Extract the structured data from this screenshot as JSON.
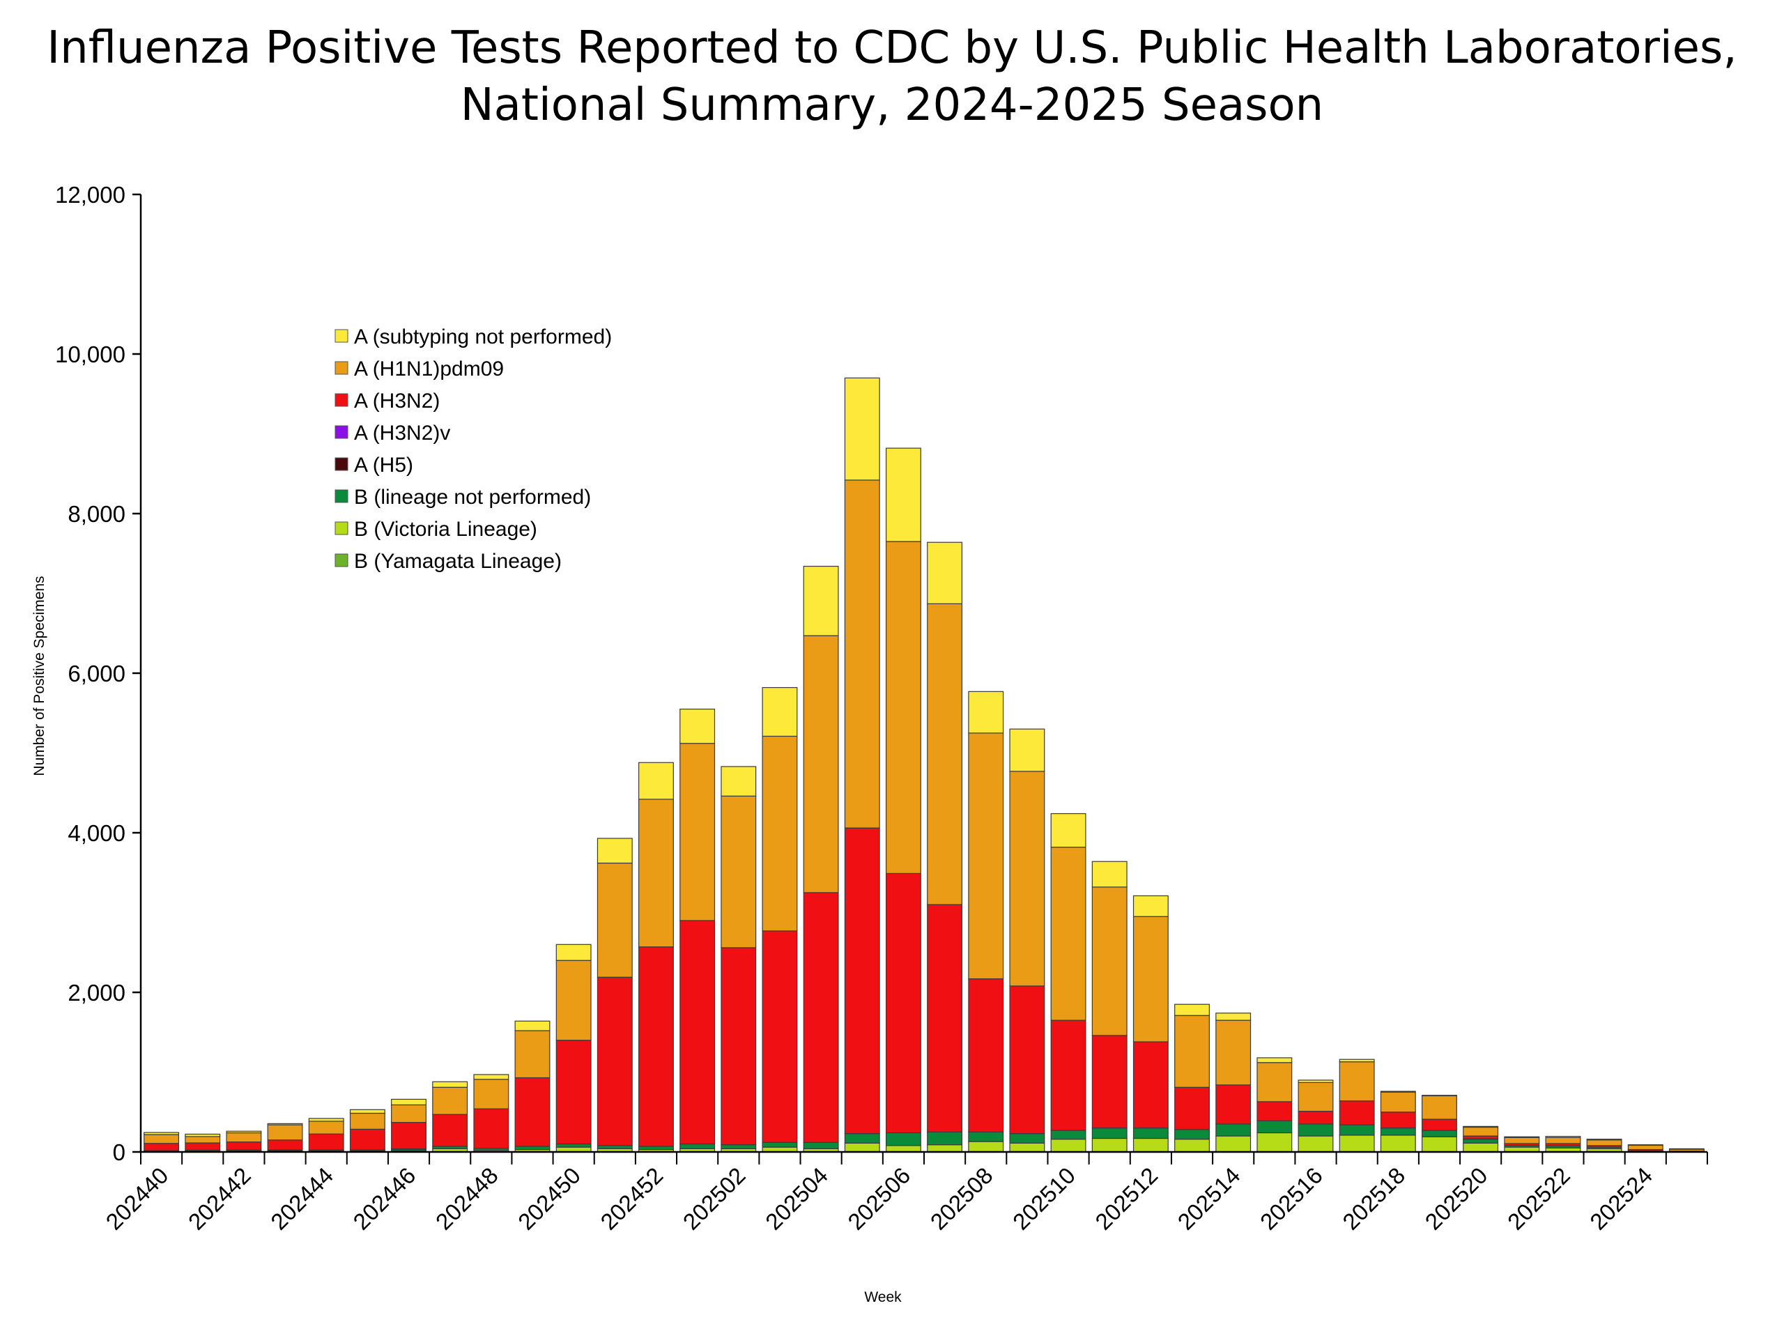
{
  "chart_data": {
    "type": "bar",
    "stacked": true,
    "title_lines": [
      "Influenza Positive Tests Reported to CDC by U.S. Public Health Laboratories,",
      "National Summary, 2024-2025 Season"
    ],
    "xlabel": "Week",
    "ylabel": "Number of Positive Specimens",
    "ylim": [
      0,
      12000
    ],
    "yticks": [
      0,
      2000,
      4000,
      6000,
      8000,
      10000,
      12000
    ],
    "ytick_labels": [
      "0",
      "2,000",
      "4,000",
      "6,000",
      "8,000",
      "10,000",
      "12,000"
    ],
    "grid": false,
    "legend_position": "upper-left inside",
    "categories": [
      "202440",
      "202441",
      "202442",
      "202443",
      "202444",
      "202445",
      "202446",
      "202447",
      "202448",
      "202449",
      "202450",
      "202451",
      "202452",
      "202501",
      "202502",
      "202503",
      "202504",
      "202505",
      "202506",
      "202507",
      "202508",
      "202509",
      "202510",
      "202511",
      "202512",
      "202513",
      "202514",
      "202515",
      "202516",
      "202517",
      "202518",
      "202519",
      "202520",
      "202521",
      "202522",
      "202523",
      "202524",
      "202525"
    ],
    "xtick_labels": [
      "202440",
      "202442",
      "202444",
      "202446",
      "202448",
      "202450",
      "202452",
      "202502",
      "202504",
      "202506",
      "202508",
      "202510",
      "202512",
      "202514",
      "202516",
      "202518",
      "202520",
      "202522",
      "202524"
    ],
    "series": [
      {
        "name": "B (Yamagata Lineage)",
        "color": "#6DB32A",
        "values": [
          0,
          0,
          0,
          0,
          0,
          0,
          0,
          0,
          0,
          0,
          0,
          0,
          0,
          0,
          0,
          0,
          0,
          0,
          0,
          0,
          0,
          0,
          0,
          0,
          0,
          0,
          0,
          0,
          0,
          0,
          0,
          0,
          0,
          0,
          0,
          0,
          0,
          0
        ]
      },
      {
        "name": "B (Victoria Lineage)",
        "color": "#B5DC16",
        "values": [
          10,
          8,
          10,
          5,
          10,
          10,
          15,
          40,
          20,
          30,
          60,
          40,
          30,
          40,
          40,
          60,
          40,
          110,
          80,
          90,
          130,
          110,
          160,
          170,
          170,
          160,
          200,
          240,
          200,
          210,
          210,
          190,
          110,
          60,
          50,
          40,
          5,
          5
        ]
      },
      {
        "name": "B (lineage not performed)",
        "color": "#0A8A3A",
        "values": [
          5,
          5,
          5,
          5,
          10,
          10,
          20,
          30,
          25,
          40,
          40,
          40,
          40,
          60,
          50,
          60,
          80,
          120,
          160,
          160,
          120,
          120,
          110,
          130,
          130,
          120,
          150,
          150,
          150,
          130,
          90,
          80,
          50,
          20,
          25,
          20,
          5,
          0
        ]
      },
      {
        "name": "A (H5)",
        "color": "#4A0A0A",
        "values": [
          2,
          10,
          10,
          15,
          5,
          5,
          3,
          0,
          0,
          0,
          0,
          0,
          0,
          0,
          0,
          0,
          0,
          0,
          0,
          0,
          0,
          0,
          0,
          0,
          0,
          0,
          0,
          0,
          0,
          0,
          0,
          0,
          5,
          0,
          0,
          0,
          5,
          0
        ]
      },
      {
        "name": "A (H3N2)v",
        "color": "#8B10E8",
        "values": [
          0,
          0,
          0,
          0,
          0,
          0,
          0,
          0,
          0,
          0,
          0,
          0,
          0,
          0,
          0,
          0,
          0,
          0,
          0,
          0,
          0,
          0,
          0,
          0,
          0,
          0,
          0,
          0,
          0,
          0,
          0,
          0,
          0,
          0,
          0,
          0,
          0,
          0
        ]
      },
      {
        "name": "A (H3N2)",
        "color": "#F00F13",
        "values": [
          90,
          90,
          100,
          125,
          200,
          260,
          332,
          400,
          495,
          860,
          1300,
          2110,
          2500,
          2800,
          2470,
          2650,
          3130,
          3830,
          3250,
          2850,
          1920,
          1850,
          1380,
          1160,
          1080,
          530,
          490,
          240,
          160,
          300,
          200,
          140,
          35,
          25,
          30,
          20,
          15,
          5
        ]
      },
      {
        "name": "A (H1N1)pdm09",
        "color": "#EA9C16",
        "values": [
          110,
          80,
          115,
          190,
          160,
          200,
          220,
          340,
          370,
          590,
          1000,
          1430,
          1850,
          2220,
          1900,
          2440,
          3220,
          4360,
          4160,
          3770,
          3080,
          2690,
          2170,
          1860,
          1570,
          900,
          810,
          490,
          360,
          490,
          250,
          295,
          110,
          75,
          75,
          70,
          55,
          25
        ]
      },
      {
        "name": "A (subtyping not performed)",
        "color": "#FCE93A",
        "values": [
          27,
          30,
          20,
          15,
          35,
          45,
          70,
          70,
          60,
          120,
          200,
          310,
          460,
          430,
          370,
          610,
          870,
          1280,
          1170,
          770,
          520,
          530,
          420,
          320,
          260,
          140,
          90,
          60,
          30,
          30,
          10,
          5,
          10,
          10,
          15,
          10,
          5,
          5
        ]
      }
    ]
  }
}
